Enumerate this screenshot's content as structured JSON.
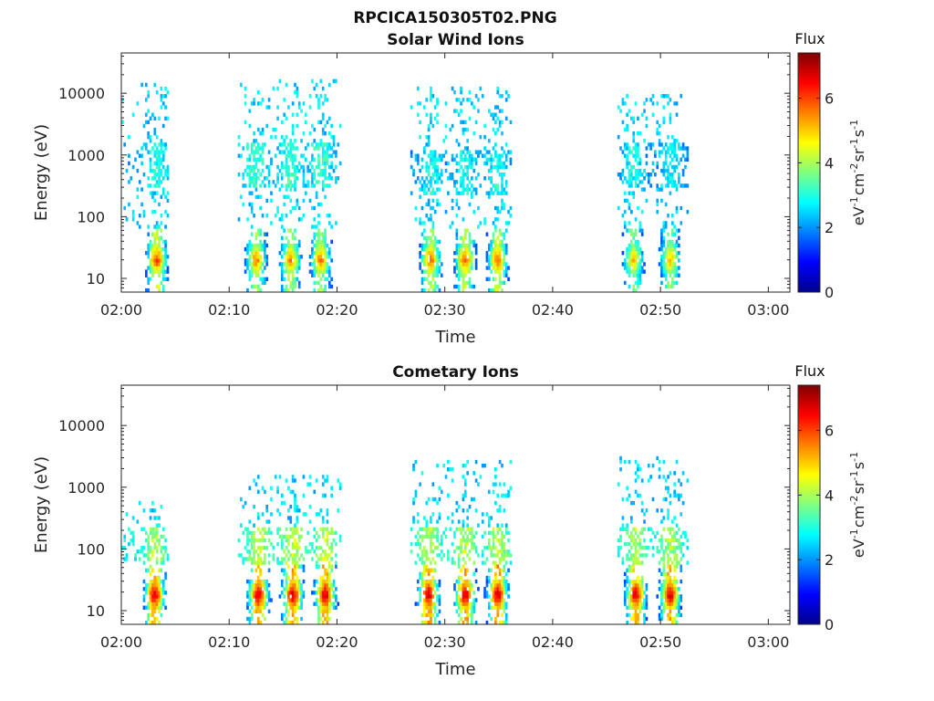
{
  "figure_title": "RPCICA150305T02.PNG",
  "colors": {
    "jet_stops": [
      "#00008f",
      "#0000ff",
      "#0080ff",
      "#00ffff",
      "#80ff80",
      "#ffff00",
      "#ff8000",
      "#ff0000",
      "#800000"
    ],
    "axis": "#262626",
    "background": "#ffffff"
  },
  "chart_data": [
    {
      "type": "heatmap",
      "title": "Solar Wind Ions",
      "xlabel": "Time",
      "ylabel": "Energy (eV)",
      "x_ticks": [
        "02:00",
        "02:10",
        "02:20",
        "02:30",
        "02:40",
        "02:50",
        "03:00"
      ],
      "xlim_minutes": [
        0,
        62
      ],
      "y_scale": "log",
      "ylim": [
        6,
        45000
      ],
      "y_ticks": [
        {
          "value": 10,
          "label": "10"
        },
        {
          "value": 100,
          "label": "100"
        },
        {
          "value": 1000,
          "label": "1000"
        },
        {
          "value": 10000,
          "label": "10000"
        }
      ],
      "colorbar": {
        "label": "Flux",
        "units": {
          "base1": "eV",
          "exp1": "-1",
          "base2": "cm",
          "exp2": "-2",
          "base3": "sr",
          "exp3": "-1",
          "base4": "s",
          "exp4": "-1"
        },
        "range": [
          0,
          7.4
        ],
        "ticks": [
          0,
          2,
          4,
          6
        ],
        "tick_labels": [
          "0",
          "2",
          "4",
          "6"
        ]
      },
      "bursts": [
        {
          "t_start": 0.0,
          "t_end": 4.4,
          "core_energy": 20,
          "core_flux": 6.0,
          "spread_high": 13000,
          "mid_energy": 700,
          "mid_flux": 3.0
        },
        {
          "t_start": 10.8,
          "t_end": 20.2,
          "core_energy": 20,
          "core_flux": 5.6,
          "spread_high": 14000,
          "mid_energy": 700,
          "mid_flux": 3.2
        },
        {
          "t_start": 26.8,
          "t_end": 36.2,
          "core_energy": 20,
          "core_flux": 5.8,
          "spread_high": 10000,
          "mid_energy": 500,
          "mid_flux": 2.9
        },
        {
          "t_start": 46.0,
          "t_end": 52.6,
          "core_energy": 20,
          "core_flux": 5.2,
          "spread_high": 8500,
          "mid_energy": 700,
          "mid_flux": 2.8
        }
      ],
      "sub_bursts_minutes": [
        3.2,
        12.4,
        15.6,
        18.4,
        28.6,
        31.8,
        34.8,
        47.4,
        50.8
      ]
    },
    {
      "type": "heatmap",
      "title": "Cometary Ions",
      "xlabel": "Time",
      "ylabel": "Energy (eV)",
      "x_ticks": [
        "02:00",
        "02:10",
        "02:20",
        "02:30",
        "02:40",
        "02:50",
        "03:00"
      ],
      "xlim_minutes": [
        0,
        62
      ],
      "y_scale": "log",
      "ylim": [
        6,
        45000
      ],
      "y_ticks": [
        {
          "value": 10,
          "label": "10"
        },
        {
          "value": 100,
          "label": "100"
        },
        {
          "value": 1000,
          "label": "1000"
        },
        {
          "value": 10000,
          "label": "10000"
        }
      ],
      "colorbar": {
        "label": "Flux",
        "units": {
          "base1": "eV",
          "exp1": "-1",
          "base2": "cm",
          "exp2": "-2",
          "base3": "sr",
          "exp3": "-1",
          "base4": "s",
          "exp4": "-1"
        },
        "range": [
          0,
          7.4
        ],
        "ticks": [
          0,
          2,
          4,
          6
        ],
        "tick_labels": [
          "0",
          "2",
          "4",
          "6"
        ]
      },
      "bursts": [
        {
          "t_start": 0.0,
          "t_end": 4.4,
          "core_energy": 18,
          "core_flux": 6.8,
          "spread_high": 600,
          "mid_energy": 100,
          "mid_flux": 4.0
        },
        {
          "t_start": 10.8,
          "t_end": 20.2,
          "core_energy": 18,
          "core_flux": 6.9,
          "spread_high": 1300,
          "mid_energy": 100,
          "mid_flux": 4.2
        },
        {
          "t_start": 26.8,
          "t_end": 36.2,
          "core_energy": 18,
          "core_flux": 6.9,
          "spread_high": 2200,
          "mid_energy": 100,
          "mid_flux": 4.1
        },
        {
          "t_start": 46.0,
          "t_end": 52.6,
          "core_energy": 18,
          "core_flux": 6.8,
          "spread_high": 2500,
          "mid_energy": 100,
          "mid_flux": 4.0
        }
      ],
      "sub_bursts_minutes": [
        3.0,
        12.6,
        15.8,
        18.8,
        28.4,
        31.8,
        34.8,
        47.6,
        50.8
      ]
    }
  ]
}
